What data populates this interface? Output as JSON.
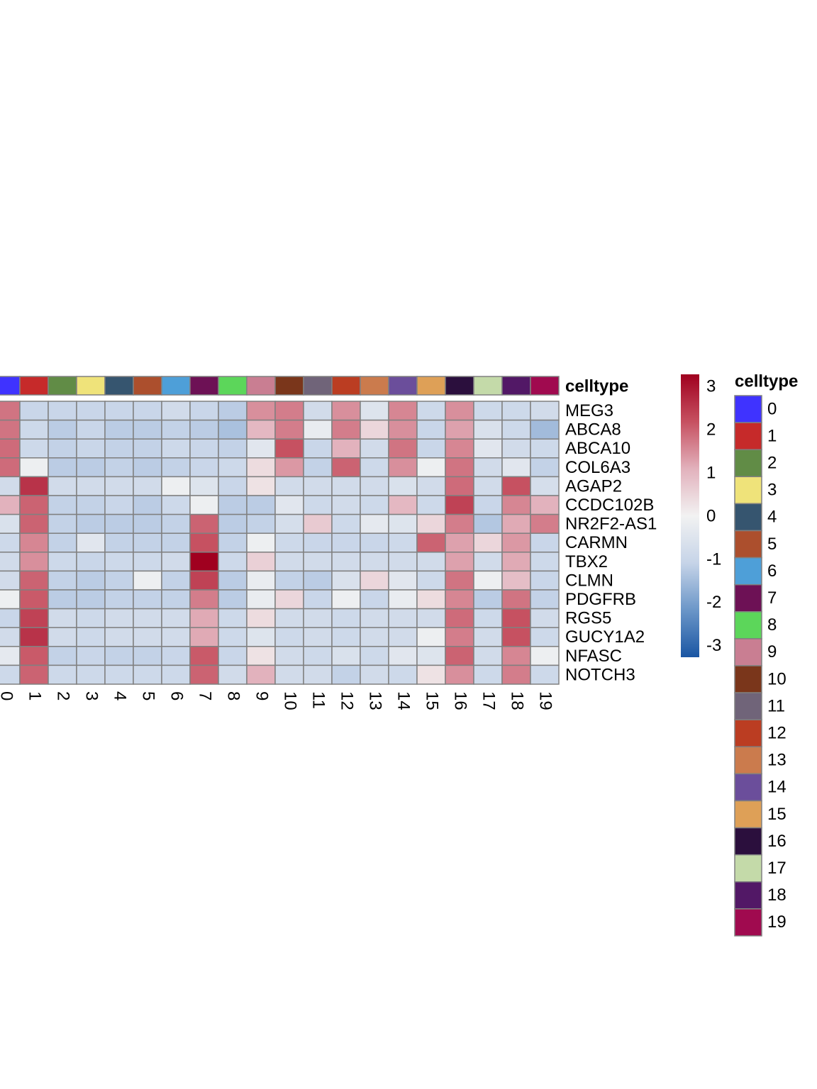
{
  "chart_data": {
    "type": "heatmap",
    "categories": [
      "0",
      "1",
      "2",
      "3",
      "4",
      "5",
      "6",
      "7",
      "8",
      "9",
      "10",
      "11",
      "12",
      "13",
      "14",
      "15",
      "16",
      "17",
      "18",
      "19"
    ],
    "rows": [
      "MEG3",
      "ABCA8",
      "ABCA10",
      "COL6A3",
      "AGAP2",
      "CCDC102B",
      "NR2F2-AS1",
      "CARMN",
      "TBX2",
      "CLMN",
      "PDGFRB",
      "RGS5",
      "GUCY1A2",
      "NFASC",
      "NOTCH3"
    ],
    "z": [
      [
        1.8,
        -1,
        -1,
        -1,
        -1,
        -1,
        -0.8,
        -1,
        -1.2,
        1.5,
        1.7,
        -0.8,
        1.5,
        -0.5,
        1.6,
        -0.9,
        1.5,
        -0.9,
        -0.9,
        -0.8
      ],
      [
        1.8,
        -0.9,
        -1.2,
        -1,
        -1.2,
        -1.2,
        -1.1,
        -1.2,
        -1.4,
        1.0,
        1.7,
        -0.2,
        1.7,
        0.5,
        1.5,
        -1,
        1.3,
        -0.6,
        -0.9,
        -1.5
      ],
      [
        1.9,
        -0.9,
        -1.1,
        -1,
        -1.1,
        -1.1,
        -0.9,
        -1,
        -1.1,
        -0.4,
        2.2,
        -1,
        1.1,
        -0.8,
        1.8,
        -1,
        1.6,
        -0.4,
        -0.8,
        -0.9
      ],
      [
        1.9,
        -0.1,
        -1.2,
        -1.2,
        -1.1,
        -1.2,
        -1.1,
        -1,
        -0.9,
        0.4,
        1.4,
        -1.1,
        2.0,
        -0.9,
        1.5,
        -0.1,
        1.8,
        -0.8,
        -0.4,
        -1.1
      ],
      [
        -0.8,
        2.6,
        -0.8,
        -0.8,
        -0.8,
        -0.8,
        -0.1,
        -0.5,
        -1,
        0.3,
        -0.8,
        -0.8,
        -0.8,
        -0.8,
        -0.6,
        -0.8,
        1.9,
        -0.8,
        2.2,
        -0.7
      ],
      [
        1.1,
        2.0,
        -1.1,
        -1.1,
        -1,
        -1.2,
        -0.9,
        -0.1,
        -1.2,
        -1.2,
        -0.4,
        -0.9,
        -0.8,
        -0.9,
        1.0,
        -0.9,
        2.4,
        -1,
        1.6,
        1.1
      ],
      [
        -0.6,
        2.0,
        -1.1,
        -1.2,
        -1.2,
        -1.2,
        -1.1,
        2.0,
        -1.2,
        -1.1,
        -0.7,
        0.7,
        -0.9,
        -0.3,
        -0.5,
        0.5,
        1.7,
        -1.3,
        1.2,
        1.7
      ],
      [
        -0.9,
        1.6,
        -1.1,
        -0.4,
        -1.1,
        -1.1,
        -1.1,
        2.2,
        -1.1,
        -0.1,
        -0.9,
        -1,
        -1,
        -1,
        -0.9,
        2.0,
        1.3,
        0.5,
        1.4,
        -1
      ],
      [
        -0.8,
        1.5,
        -0.9,
        -1,
        -0.9,
        -0.9,
        -0.8,
        3.3,
        -0.9,
        0.6,
        -0.8,
        -0.8,
        -0.8,
        -0.8,
        -0.8,
        -0.8,
        1.3,
        -0.8,
        1.2,
        -0.9
      ],
      [
        -0.8,
        2.0,
        -1.1,
        -1.2,
        -1.1,
        -0.1,
        -1.1,
        2.4,
        -1.2,
        -0.2,
        -1.1,
        -1.2,
        -0.6,
        0.5,
        -0.4,
        -0.9,
        1.8,
        -0.1,
        0.9,
        -1
      ],
      [
        -0.1,
        2.1,
        -1.2,
        -1.2,
        -1.1,
        -1.1,
        -1.1,
        1.7,
        -1.2,
        -0.2,
        0.5,
        -1,
        -0.1,
        -1,
        -0.2,
        0.4,
        1.6,
        -1.2,
        1.8,
        -1.1
      ],
      [
        -1,
        2.4,
        -0.8,
        -0.9,
        -0.8,
        -0.8,
        -0.8,
        1.2,
        -0.9,
        0.4,
        -0.8,
        -0.8,
        -0.9,
        -0.8,
        -0.8,
        -0.8,
        1.9,
        -0.9,
        2.2,
        -0.8
      ],
      [
        -0.8,
        2.6,
        -0.8,
        -0.9,
        -0.8,
        -0.8,
        -0.8,
        1.2,
        -0.9,
        -0.5,
        -0.9,
        -0.8,
        -0.9,
        -0.8,
        -0.8,
        -0.1,
        1.7,
        -0.8,
        2.2,
        -0.9
      ],
      [
        -0.3,
        2.1,
        -1.1,
        -1,
        -1.1,
        -1.1,
        -1,
        2.1,
        -1,
        0.3,
        -0.8,
        -0.9,
        -0.6,
        -0.9,
        -0.4,
        -0.5,
        2.0,
        -0.8,
        1.6,
        -0.1
      ],
      [
        -0.9,
        2.0,
        -0.9,
        -0.9,
        -0.9,
        -0.9,
        -0.9,
        2.0,
        -0.8,
        1.1,
        -0.8,
        -0.8,
        -1.1,
        -0.8,
        -0.9,
        0.3,
        1.5,
        -0.9,
        1.7,
        -0.9
      ]
    ],
    "zlim": [
      -3.25,
      3.3
    ],
    "zticks": [
      -3,
      -2,
      -1,
      0,
      1,
      2,
      3
    ],
    "colormap": [
      "#1a56a3",
      "#6b96c8",
      "#c6d4e8",
      "#f2f2f2",
      "#e2b1bc",
      "#c65060",
      "#a0001f"
    ],
    "annotation": {
      "name": "celltype",
      "colors": [
        "#3f33ff",
        "#c62a2a",
        "#618c46",
        "#efe37a",
        "#36556f",
        "#ac4f2d",
        "#4e9fd8",
        "#6d1155",
        "#5cd65a",
        "#c97e92",
        "#7a361b",
        "#706479",
        "#bb3d22",
        "#cb7b4d",
        "#6b4e9b",
        "#dea057",
        "#2b0f3d",
        "#c4daa9",
        "#521866",
        "#a00a4f"
      ]
    }
  }
}
